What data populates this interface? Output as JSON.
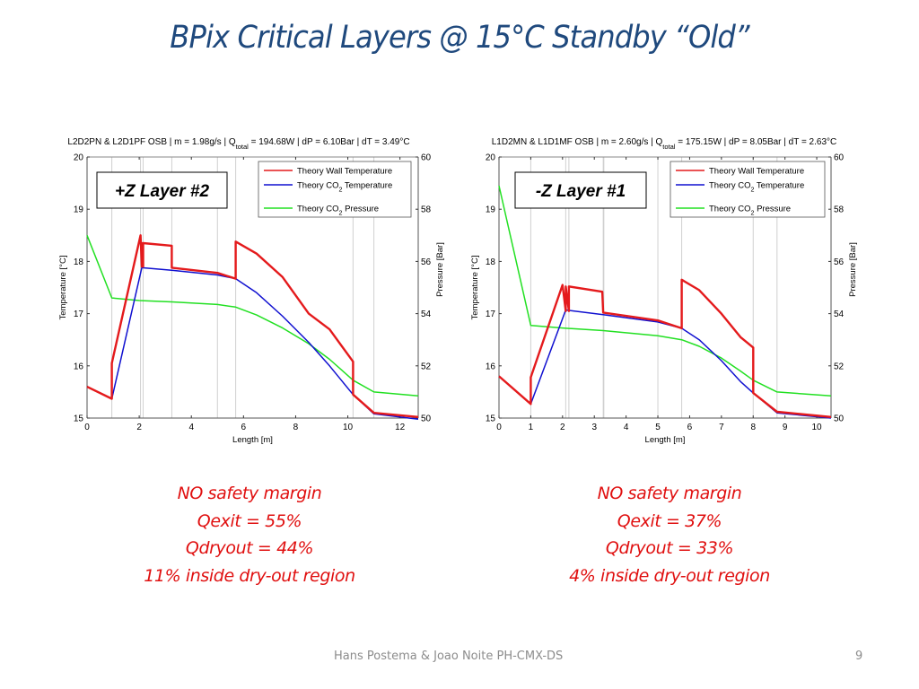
{
  "slide": {
    "title": "BPix Critical Layers @ 15°C Standby “Old”",
    "footer": "Hans Postema & Joao Noite  PH-CMX-DS",
    "page_number": "9"
  },
  "notes": [
    [
      "NO safety margin",
      "Qexit = 55%",
      "Qdryout = 44%",
      "11% inside dry-out region"
    ],
    [
      "NO safety margin",
      "Qexit = 37%",
      "Qdryout = 33%",
      "4% inside dry-out region"
    ]
  ],
  "colors": {
    "wall": "#e41a1c",
    "co2_temp": "#1010d0",
    "co2_pressure": "#22e022",
    "title": "#1f497d",
    "note": "#e01010"
  },
  "chart_data": [
    {
      "type": "line",
      "title_parts": {
        "pre": "L2D2PN & L2D1PF OSB | m = 1.98g/s | Q",
        "sub": "total",
        "post": " = 194.68W | dP = 6.10Bar | dT = 3.49°C"
      },
      "label_box": "+Z Layer #2",
      "xlabel": "Length [m]",
      "ylabel": "Temperature [°C]",
      "y2label": "Pressure [Bar]",
      "xlim": [
        0,
        12.7
      ],
      "ylim": [
        15,
        20
      ],
      "y2lim": [
        50,
        60
      ],
      "xticks": [
        0,
        2,
        4,
        6,
        8,
        10,
        12
      ],
      "yticks": [
        15,
        16,
        17,
        18,
        19,
        20
      ],
      "y2ticks": [
        50,
        52,
        54,
        56,
        58,
        60
      ],
      "vgrid": [
        0.95,
        2.05,
        2.15,
        3.25,
        5.0,
        5.7,
        10.2,
        11.0
      ],
      "legend": [
        {
          "label_pre": "Theory Wall Temperature",
          "sub": "",
          "post": "",
          "series": "wall"
        },
        {
          "label_pre": "Theory CO",
          "sub": "2",
          "post": " Temperature",
          "series": "co2_temp"
        },
        {
          "label_pre": "Theory CO",
          "sub": "2",
          "post": " Pressure",
          "series": "co2_pressure"
        }
      ],
      "legend_position": "top-right",
      "series": [
        {
          "name": "Theory Wall Temperature",
          "key": "wall",
          "axis": "left",
          "x": [
            0,
            0.95,
            0.95,
            2.05,
            2.1,
            2.1,
            2.15,
            2.15,
            3.25,
            3.25,
            5.0,
            5.7,
            5.7,
            6.5,
            7.5,
            8.5,
            9.3,
            10.2,
            10.2,
            11.0,
            12.7
          ],
          "y": [
            15.6,
            15.37,
            16.05,
            18.5,
            17.9,
            18.35,
            17.9,
            18.35,
            18.3,
            17.88,
            17.78,
            17.67,
            18.38,
            18.15,
            17.7,
            17.0,
            16.7,
            16.08,
            15.45,
            15.1,
            15.02
          ]
        },
        {
          "name": "Theory CO2 Temperature",
          "key": "co2_temp",
          "axis": "left",
          "x": [
            0,
            0.95,
            2.1,
            3.25,
            5.0,
            5.7,
            6.5,
            7.5,
            8.5,
            9.3,
            10.2,
            11.0,
            12.7
          ],
          "y": [
            15.6,
            15.37,
            17.88,
            17.83,
            17.74,
            17.67,
            17.4,
            16.95,
            16.45,
            16.0,
            15.45,
            15.08,
            14.98
          ]
        },
        {
          "name": "Theory CO2 Pressure",
          "key": "co2_pressure",
          "axis": "right",
          "x": [
            0,
            0.95,
            2.0,
            3.25,
            5.0,
            5.7,
            6.5,
            7.5,
            8.5,
            9.3,
            10.2,
            11.0,
            12.7
          ],
          "y": [
            57.0,
            54.6,
            54.5,
            54.45,
            54.35,
            54.25,
            53.95,
            53.45,
            52.85,
            52.25,
            51.45,
            51.0,
            50.85
          ]
        }
      ]
    },
    {
      "type": "line",
      "title_parts": {
        "pre": "L1D2MN & L1D1MF OSB | m = 2.60g/s | Q",
        "sub": "total",
        "post": " = 175.15W | dP = 8.05Bar | dT = 2.63°C"
      },
      "label_box": "-Z Layer #1",
      "xlabel": "Length [m]",
      "ylabel": "Temperature [°C]",
      "y2label": "Pressure [Bar]",
      "xlim": [
        0,
        10.45
      ],
      "ylim": [
        15,
        20
      ],
      "y2lim": [
        50,
        60
      ],
      "xticks": [
        0,
        1,
        2,
        3,
        4,
        5,
        6,
        7,
        8,
        9,
        10
      ],
      "yticks": [
        15,
        16,
        17,
        18,
        19,
        20
      ],
      "y2ticks": [
        50,
        52,
        54,
        56,
        58,
        60
      ],
      "vgrid": [
        1.0,
        2.1,
        2.2,
        3.28,
        3.3,
        5.0,
        5.75,
        8.0,
        8.75
      ],
      "legend": [
        {
          "label_pre": "Theory Wall Temperature",
          "sub": "",
          "post": "",
          "series": "wall"
        },
        {
          "label_pre": "Theory CO",
          "sub": "2",
          "post": " Temperature",
          "series": "co2_temp"
        },
        {
          "label_pre": "Theory CO",
          "sub": "2",
          "post": " Pressure",
          "series": "co2_pressure"
        }
      ],
      "legend_position": "top-right",
      "series": [
        {
          "name": "Theory Wall Temperature",
          "key": "wall",
          "axis": "left",
          "x": [
            0,
            1.0,
            1.0,
            2.0,
            2.1,
            2.1,
            2.2,
            2.2,
            3.25,
            3.28,
            5.0,
            5.75,
            5.75,
            6.3,
            7.0,
            7.6,
            8.0,
            8.0,
            8.75,
            10.45
          ],
          "y": [
            15.8,
            15.27,
            15.78,
            17.55,
            17.05,
            17.52,
            17.05,
            17.52,
            17.42,
            17.02,
            16.87,
            16.72,
            17.65,
            17.45,
            17.0,
            16.55,
            16.35,
            15.48,
            15.12,
            15.02
          ]
        },
        {
          "name": "Theory CO2 Temperature",
          "key": "co2_temp",
          "axis": "left",
          "x": [
            0,
            1.0,
            2.1,
            3.28,
            5.0,
            5.75,
            6.3,
            7.0,
            7.6,
            8.0,
            8.75,
            10.45
          ],
          "y": [
            15.8,
            15.27,
            17.07,
            16.98,
            16.84,
            16.72,
            16.5,
            16.1,
            15.7,
            15.48,
            15.1,
            15.0
          ]
        },
        {
          "name": "Theory CO2 Pressure",
          "key": "co2_pressure",
          "axis": "right",
          "x": [
            0,
            1.0,
            2.0,
            3.28,
            5.0,
            5.75,
            6.3,
            7.0,
            7.6,
            8.0,
            8.75,
            10.45
          ],
          "y": [
            58.9,
            53.55,
            53.45,
            53.35,
            53.15,
            53.0,
            52.75,
            52.3,
            51.8,
            51.45,
            51.0,
            50.85
          ]
        }
      ]
    }
  ]
}
